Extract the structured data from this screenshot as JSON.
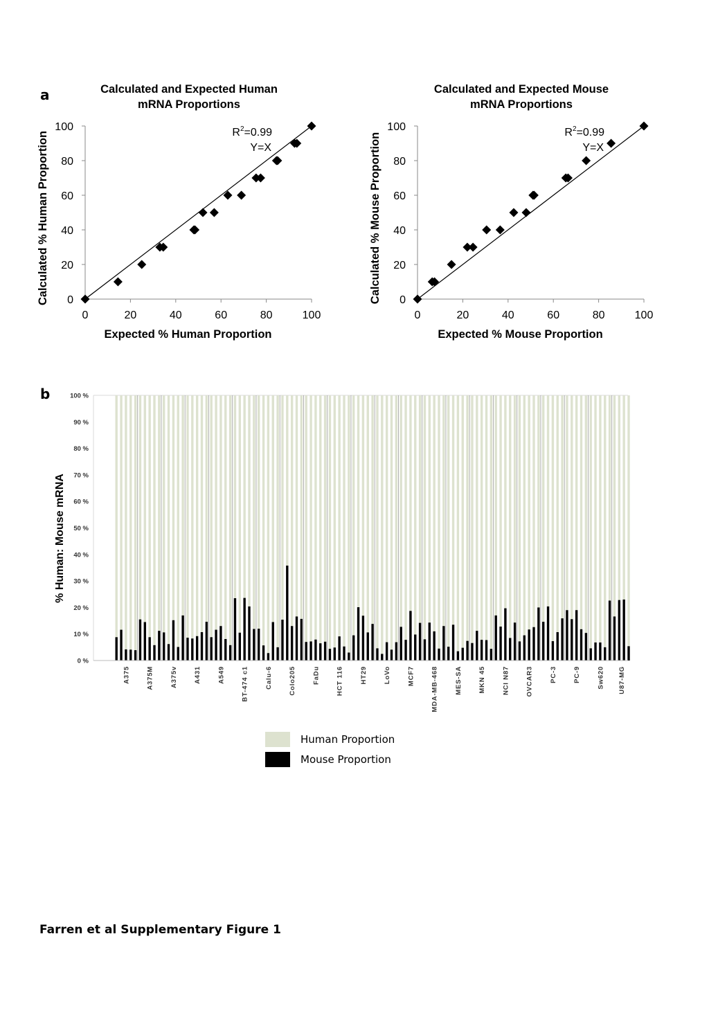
{
  "panel_a_label": "a",
  "panel_b_label": "b",
  "footer_caption": "Farren et al Supplementary Figure 1",
  "colors": {
    "human": "#dde2cf",
    "mouse": "#000000",
    "axis": "#666666"
  },
  "chart_data": [
    {
      "type": "scatter",
      "title": "Calculated and Expected Human mRNA Proportions",
      "title_lines": [
        "Calculated and Expected Human",
        "mRNA Proportions"
      ],
      "xlabel": "Expected % Human Proportion",
      "ylabel": "Calculated % Human Proportion",
      "xlim": [
        0,
        100
      ],
      "ylim": [
        0,
        100
      ],
      "xticks": [
        0,
        20,
        40,
        60,
        80,
        100
      ],
      "yticks": [
        0,
        20,
        40,
        60,
        80,
        100
      ],
      "annotation_r2": "0.99",
      "annotation_line": "Y=X",
      "trendline": "y=x",
      "points": [
        [
          0,
          0
        ],
        [
          14.5,
          10
        ],
        [
          25,
          20
        ],
        [
          33,
          30
        ],
        [
          34.5,
          30
        ],
        [
          48,
          40
        ],
        [
          48.5,
          40
        ],
        [
          52,
          50
        ],
        [
          57,
          50
        ],
        [
          63,
          60
        ],
        [
          69,
          60
        ],
        [
          75.5,
          70
        ],
        [
          77.5,
          70
        ],
        [
          84.5,
          80
        ],
        [
          85,
          80
        ],
        [
          92.5,
          90
        ],
        [
          93.5,
          90
        ],
        [
          100,
          100
        ]
      ]
    },
    {
      "type": "scatter",
      "title": "Calculated and Expected Mouse mRNA Proportions",
      "title_lines": [
        "Calculated and Expected Mouse",
        "mRNA Proportions"
      ],
      "xlabel": "Expected % Mouse Proportion",
      "ylabel": "Calculated % Mouse Proportion",
      "xlim": [
        0,
        100
      ],
      "ylim": [
        0,
        100
      ],
      "xticks": [
        0,
        20,
        40,
        60,
        80,
        100
      ],
      "yticks": [
        0,
        20,
        40,
        60,
        80,
        100
      ],
      "annotation_r2": "0.99",
      "annotation_line": "Y=X",
      "trendline": "y=x",
      "points": [
        [
          0,
          0
        ],
        [
          6.5,
          10
        ],
        [
          7.5,
          10
        ],
        [
          15,
          20
        ],
        [
          22,
          30
        ],
        [
          24.5,
          30
        ],
        [
          30.5,
          40
        ],
        [
          36.5,
          40
        ],
        [
          42.5,
          50
        ],
        [
          48,
          50
        ],
        [
          51,
          60
        ],
        [
          51.5,
          60
        ],
        [
          65.5,
          70
        ],
        [
          66.5,
          70
        ],
        [
          74.5,
          80
        ],
        [
          85.5,
          90
        ],
        [
          100,
          100
        ]
      ]
    },
    {
      "type": "bar",
      "stacked": true,
      "ylabel": "% Human: Mouse mRNA",
      "yticks": [
        "0 %",
        "10 %",
        "20 %",
        "30 %",
        "40 %",
        "50 %",
        "60 %",
        "70 %",
        "80 %",
        "90 %",
        "100 %"
      ],
      "ylim": [
        0,
        100
      ],
      "legend": [
        "Human Proportion",
        "Mouse Proportion"
      ],
      "legend_position": "bottom",
      "series": [
        {
          "name": "Human Proportion",
          "values": "100 - Mouse Proportion"
        },
        {
          "name": "Mouse Proportion"
        }
      ],
      "groups": [
        {
          "label": "A375",
          "mouse": [
            8.8,
            11.6,
            4.2,
            4.1,
            3.9
          ]
        },
        {
          "label": "A375M",
          "mouse": [
            15.5,
            14.5,
            8.8,
            5.8,
            11.2
          ]
        },
        {
          "label": "A375v",
          "mouse": [
            10.6,
            6.2,
            15.2,
            5.1,
            17.0
          ]
        },
        {
          "label": "A431",
          "mouse": [
            8.6,
            8.3,
            9.2,
            10.7,
            14.6
          ]
        },
        {
          "label": "A549",
          "mouse": [
            8.8,
            11.6,
            13.0,
            8.1,
            5.8
          ]
        },
        {
          "label": "BT-474 c1",
          "mouse": [
            23.5,
            10.5,
            23.6,
            20.4,
            11.9
          ]
        },
        {
          "label": "Calu-6",
          "mouse": [
            12.0,
            5.7,
            2.8,
            14.5,
            5.0
          ]
        },
        {
          "label": "Colo205",
          "mouse": [
            15.4,
            35.8,
            13.0,
            16.6,
            15.7
          ]
        },
        {
          "label": "FaDu",
          "mouse": [
            7.0,
            7.2,
            7.9,
            6.5,
            7.1
          ]
        },
        {
          "label": "HCT 116",
          "mouse": [
            4.4,
            4.9,
            9.1,
            5.3,
            3.0
          ]
        },
        {
          "label": "HT29",
          "mouse": [
            9.5,
            20.1,
            16.9,
            10.6,
            13.8
          ]
        },
        {
          "label": "LoVo",
          "mouse": [
            4.6,
            2.5,
            6.9,
            4.1,
            6.9
          ]
        },
        {
          "label": "MCF7",
          "mouse": [
            12.7,
            7.8,
            18.7,
            9.8,
            14.2
          ]
        },
        {
          "label": "MDA-MB-468",
          "mouse": [
            8.0,
            14.3,
            11.0,
            4.5,
            13.0
          ]
        },
        {
          "label": "MES-SA",
          "mouse": [
            5.2,
            13.5,
            3.5,
            4.8,
            7.4
          ]
        },
        {
          "label": "MKN 45",
          "mouse": [
            6.6,
            11.2,
            7.8,
            7.7,
            4.4
          ]
        },
        {
          "label": "NCI N87",
          "mouse": [
            17.0,
            12.8,
            19.7,
            8.5,
            14.3
          ]
        },
        {
          "label": "OVCAR3",
          "mouse": [
            7.2,
            9.5,
            11.7,
            12.6,
            20.0
          ]
        },
        {
          "label": "PC-3",
          "mouse": [
            14.6,
            20.4,
            7.3,
            10.7,
            15.9
          ]
        },
        {
          "label": "PC-9",
          "mouse": [
            19.0,
            15.6,
            19.0,
            11.8,
            10.4
          ]
        },
        {
          "label": "Sw620",
          "mouse": [
            4.6,
            6.8,
            6.8,
            5.0,
            22.6
          ]
        },
        {
          "label": "U87-MG",
          "mouse": [
            16.6,
            22.8,
            23.0,
            5.4
          ]
        }
      ]
    }
  ]
}
